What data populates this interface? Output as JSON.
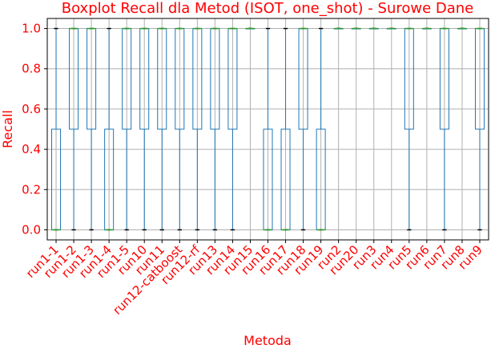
{
  "chart_data": {
    "type": "boxplot",
    "title": "Boxplot Recall dla Metod (ISOT, one_shot) - Surowe Dane",
    "xlabel": "Metoda",
    "ylabel": "Recall",
    "ylim": [
      -0.05,
      1.05
    ],
    "yticks": [
      "0.0",
      "0.2",
      "0.4",
      "0.6",
      "0.8",
      "1.0"
    ],
    "grid": true,
    "colors": {
      "box": "#1f77b4",
      "median": "#2ca02c",
      "flier": "#000000",
      "text": "#ff0000",
      "grid": "#b0b0b0"
    },
    "categories": [
      "run1-1",
      "run1-2",
      "run1-3",
      "run1-4",
      "run1-5",
      "run10",
      "run11",
      "run12-catboost",
      "run12-rf",
      "run13",
      "run14",
      "run15",
      "run16",
      "run17",
      "run18",
      "run19",
      "run2",
      "run20",
      "run3",
      "run4",
      "run5",
      "run6",
      "run7",
      "run8",
      "run9"
    ],
    "series": [
      {
        "category": "run1-1",
        "min": 0.0,
        "q1": 0.0,
        "median": 0.0,
        "q3": 0.5,
        "max": 1.0
      },
      {
        "category": "run1-2",
        "min": 0.0,
        "q1": 0.5,
        "median": 1.0,
        "q3": 1.0,
        "max": 1.0
      },
      {
        "category": "run1-3",
        "min": 0.0,
        "q1": 0.5,
        "median": 1.0,
        "q3": 1.0,
        "max": 1.0
      },
      {
        "category": "run1-4",
        "min": 0.0,
        "q1": 0.0,
        "median": 0.0,
        "q3": 0.5,
        "max": 1.0
      },
      {
        "category": "run1-5",
        "min": 0.0,
        "q1": 0.5,
        "median": 1.0,
        "q3": 1.0,
        "max": 1.0
      },
      {
        "category": "run10",
        "min": 0.0,
        "q1": 0.5,
        "median": 1.0,
        "q3": 1.0,
        "max": 1.0
      },
      {
        "category": "run11",
        "min": 0.0,
        "q1": 0.5,
        "median": 1.0,
        "q3": 1.0,
        "max": 1.0
      },
      {
        "category": "run12-catboost",
        "min": 0.0,
        "q1": 0.5,
        "median": 1.0,
        "q3": 1.0,
        "max": 1.0
      },
      {
        "category": "run12-rf",
        "min": 0.0,
        "q1": 0.5,
        "median": 1.0,
        "q3": 1.0,
        "max": 1.0
      },
      {
        "category": "run13",
        "min": 0.0,
        "q1": 0.5,
        "median": 1.0,
        "q3": 1.0,
        "max": 1.0
      },
      {
        "category": "run14",
        "min": 0.0,
        "q1": 0.5,
        "median": 1.0,
        "q3": 1.0,
        "max": 1.0
      },
      {
        "category": "run15",
        "min": 1.0,
        "q1": 1.0,
        "median": 1.0,
        "q3": 1.0,
        "max": 1.0
      },
      {
        "category": "run16",
        "min": 0.0,
        "q1": 0.0,
        "median": 0.0,
        "q3": 0.5,
        "max": 1.0
      },
      {
        "category": "run17",
        "min": 0.0,
        "q1": 0.0,
        "median": 0.0,
        "q3": 0.5,
        "max": 1.0
      },
      {
        "category": "run18",
        "min": 0.0,
        "q1": 0.5,
        "median": 1.0,
        "q3": 1.0,
        "max": 1.0
      },
      {
        "category": "run19",
        "min": 0.0,
        "q1": 0.0,
        "median": 0.0,
        "q3": 0.5,
        "max": 1.0
      },
      {
        "category": "run2",
        "min": 1.0,
        "q1": 1.0,
        "median": 1.0,
        "q3": 1.0,
        "max": 1.0
      },
      {
        "category": "run20",
        "min": 1.0,
        "q1": 1.0,
        "median": 1.0,
        "q3": 1.0,
        "max": 1.0
      },
      {
        "category": "run3",
        "min": 1.0,
        "q1": 1.0,
        "median": 1.0,
        "q3": 1.0,
        "max": 1.0
      },
      {
        "category": "run4",
        "min": 1.0,
        "q1": 1.0,
        "median": 1.0,
        "q3": 1.0,
        "max": 1.0
      },
      {
        "category": "run5",
        "min": 0.0,
        "q1": 0.5,
        "median": 1.0,
        "q3": 1.0,
        "max": 1.0
      },
      {
        "category": "run6",
        "min": 1.0,
        "q1": 1.0,
        "median": 1.0,
        "q3": 1.0,
        "max": 1.0
      },
      {
        "category": "run7",
        "min": 0.0,
        "q1": 0.5,
        "median": 1.0,
        "q3": 1.0,
        "max": 1.0
      },
      {
        "category": "run8",
        "min": 1.0,
        "q1": 1.0,
        "median": 1.0,
        "q3": 1.0,
        "max": 1.0
      },
      {
        "category": "run9",
        "min": 0.0,
        "q1": 0.5,
        "median": 1.0,
        "q3": 1.0,
        "max": 1.0
      }
    ]
  }
}
